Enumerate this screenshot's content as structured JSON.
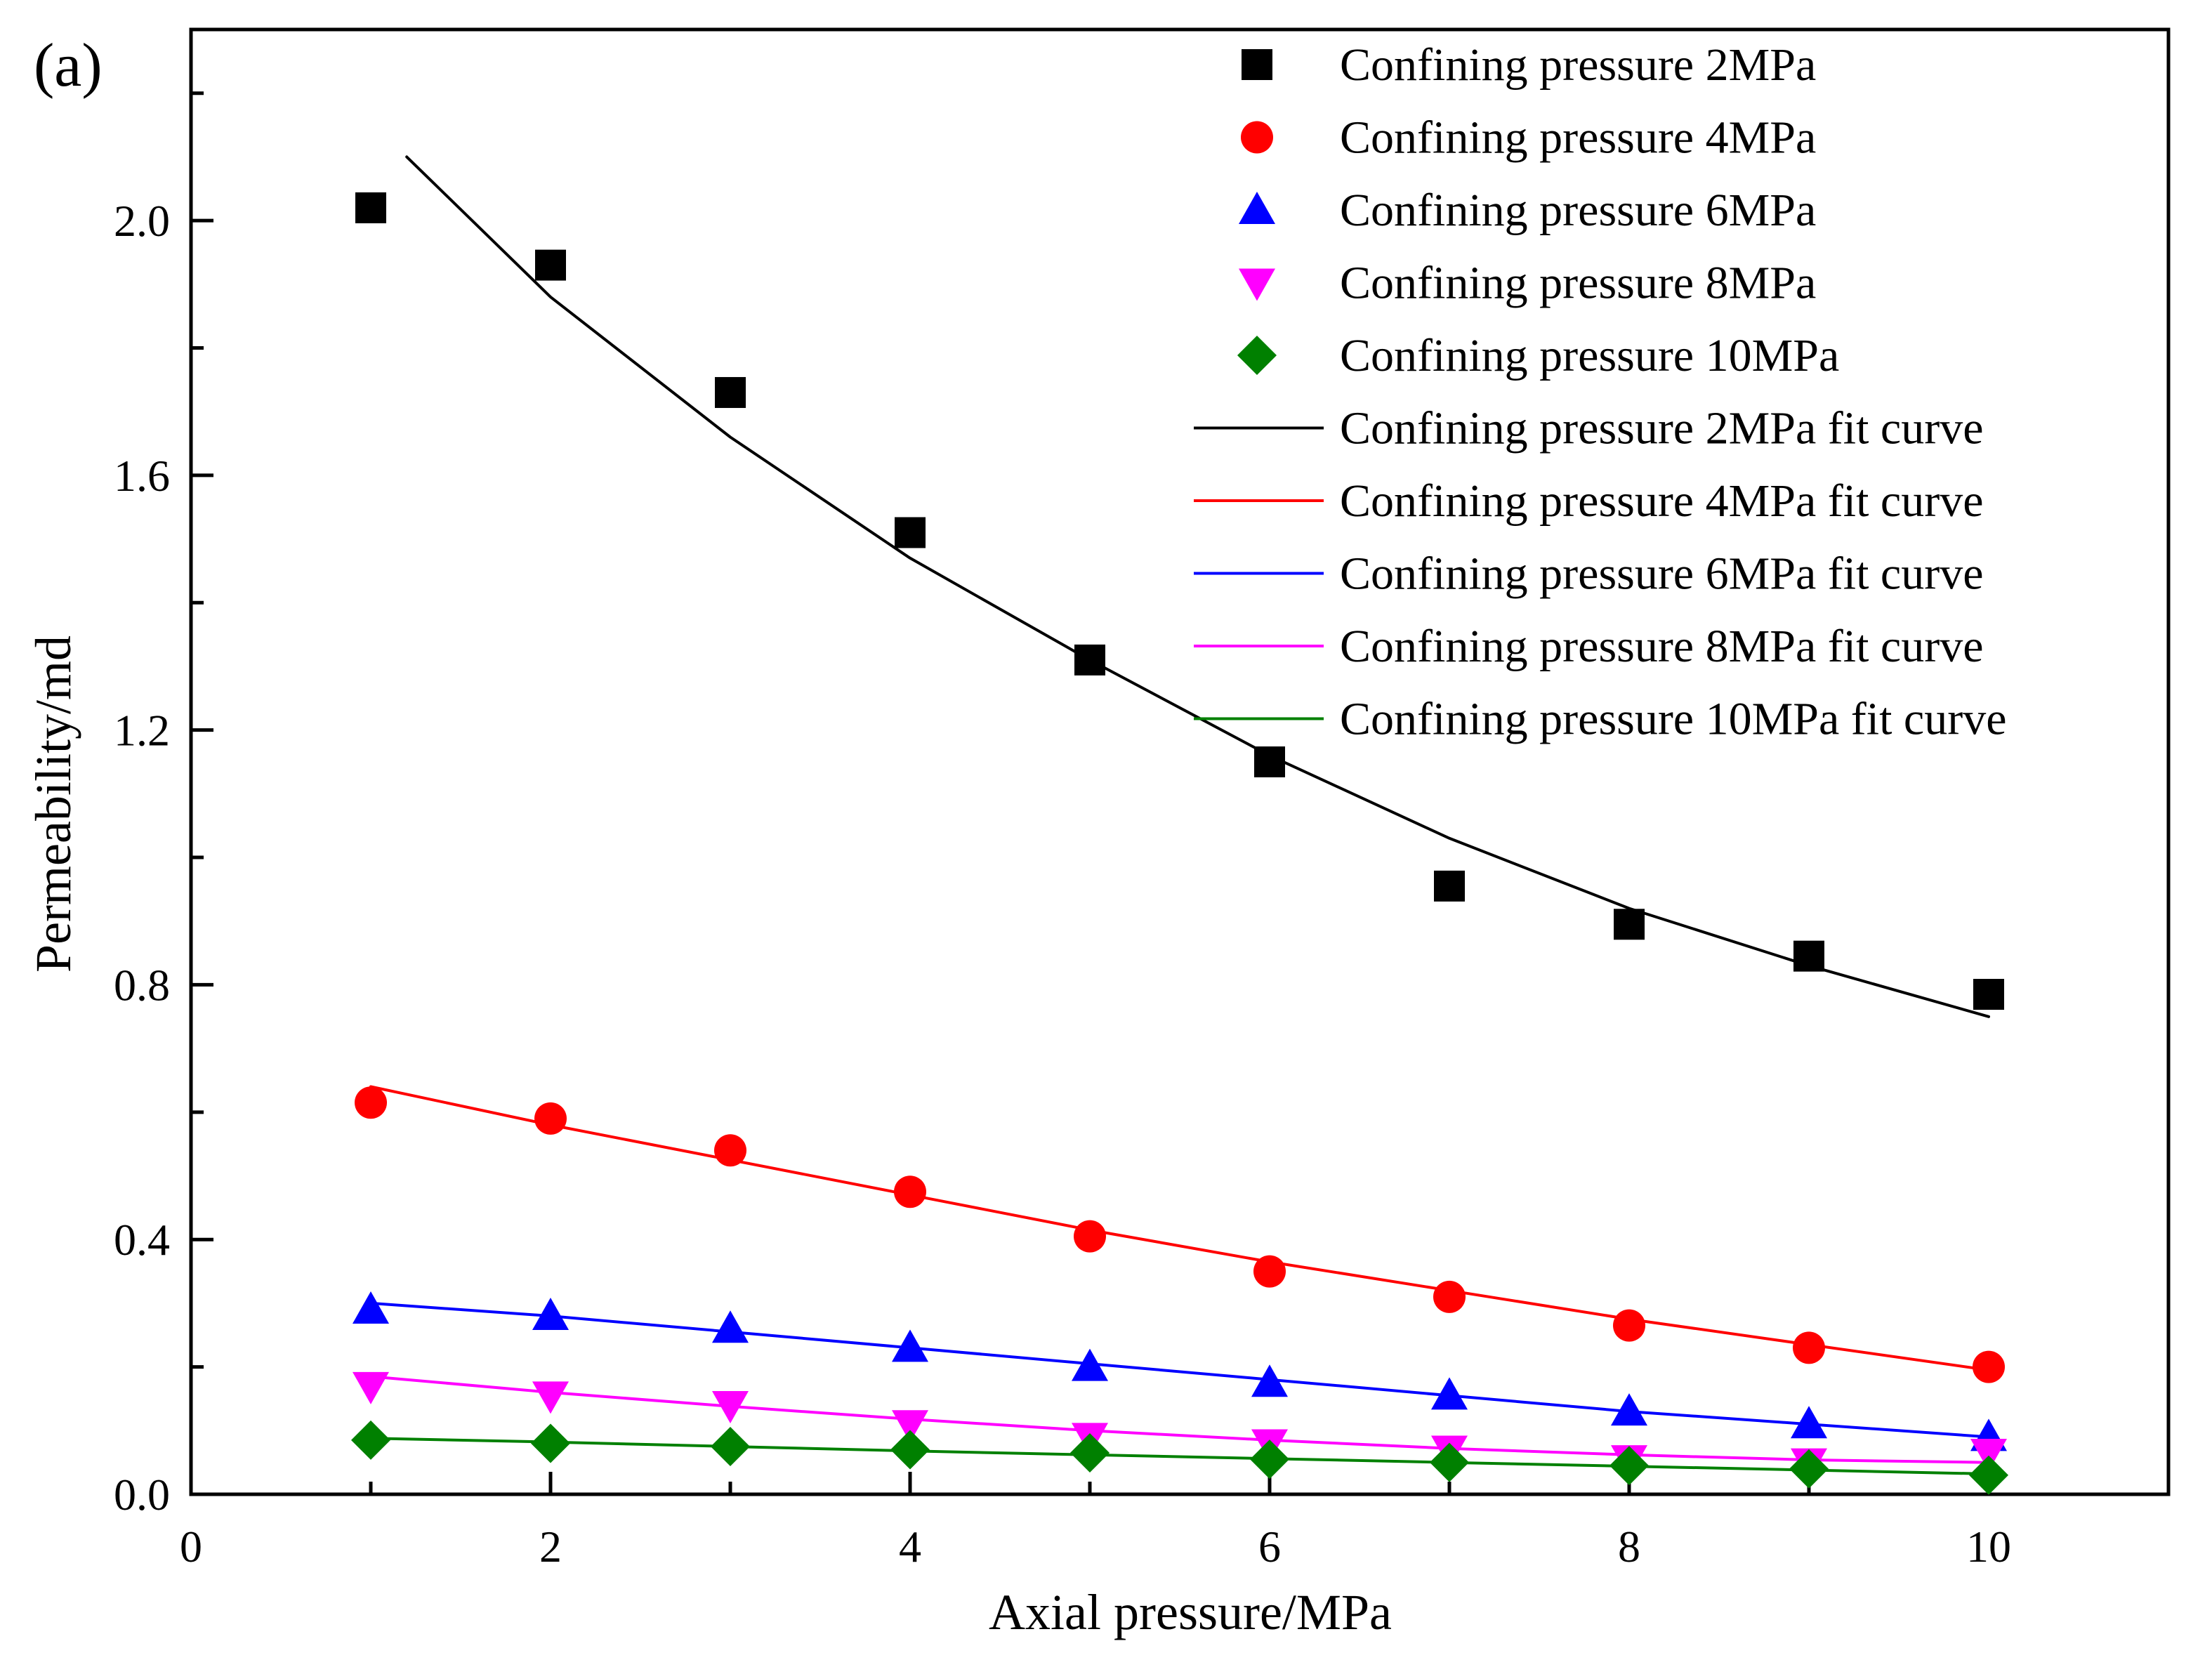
{
  "chart_data": {
    "type": "scatter",
    "panel_label": "(a)",
    "xlabel": "Axial pressure/MPa",
    "ylabel": "Permeability/md",
    "xlim": [
      0,
      11
    ],
    "ylim": [
      0,
      2.3
    ],
    "x_ticks": [
      0,
      2,
      4,
      6,
      8,
      10
    ],
    "x_tick_labels": [
      "0",
      "2",
      "4",
      "6",
      "8",
      "10"
    ],
    "y_ticks": [
      0,
      0.4,
      0.8,
      1.2,
      1.6,
      2.0
    ],
    "y_tick_labels": [
      "0.0",
      "0.4",
      "0.8",
      "1.2",
      "1.6",
      "2.0"
    ],
    "grid": false,
    "legend_position": "top-right",
    "x": [
      1,
      2,
      3,
      4,
      5,
      6,
      7,
      8,
      9,
      10
    ],
    "series": [
      {
        "name": "Confining pressure 2MPa",
        "marker": "square",
        "color": "#000000",
        "values": [
          2.02,
          1.93,
          1.73,
          1.51,
          1.31,
          1.15,
          0.955,
          0.895,
          0.845,
          0.785
        ]
      },
      {
        "name": "Confining pressure 4MPa",
        "marker": "circle",
        "color": "#ff0000",
        "values": [
          0.615,
          0.59,
          0.54,
          0.475,
          0.405,
          0.35,
          0.31,
          0.265,
          0.23,
          0.2
        ]
      },
      {
        "name": "Confining pressure 6MPa",
        "marker": "triangle-up",
        "color": "#0000ff",
        "values": [
          0.29,
          0.28,
          0.26,
          0.23,
          0.2,
          0.175,
          0.155,
          0.13,
          0.11,
          0.09
        ]
      },
      {
        "name": "Confining pressure 8MPa",
        "marker": "triangle-down",
        "color": "#ff00ff",
        "values": [
          0.17,
          0.155,
          0.14,
          0.11,
          0.09,
          0.08,
          0.07,
          0.055,
          0.05,
          0.065
        ]
      },
      {
        "name": "Confining pressure 10MPa",
        "marker": "diamond",
        "color": "#008000",
        "values": [
          0.085,
          0.08,
          0.075,
          0.07,
          0.065,
          0.055,
          0.05,
          0.045,
          0.04,
          0.03
        ]
      }
    ],
    "fit_curves": [
      {
        "name": "Confining pressure 2MPa fit curve",
        "color": "#000000",
        "x": [
          1.2,
          2,
          3,
          4,
          5,
          6,
          7,
          8,
          9,
          10
        ],
        "values": [
          2.1,
          1.88,
          1.66,
          1.47,
          1.31,
          1.16,
          1.03,
          0.92,
          0.83,
          0.75
        ]
      },
      {
        "name": "Confining pressure 4MPa fit curve",
        "color": "#ff0000",
        "x": [
          1,
          2,
          3,
          4,
          5,
          6,
          7,
          8,
          9,
          10
        ],
        "values": [
          0.64,
          0.58,
          0.525,
          0.47,
          0.415,
          0.365,
          0.32,
          0.275,
          0.235,
          0.195
        ]
      },
      {
        "name": "Confining pressure 6MPa fit curve",
        "color": "#0000ff",
        "x": [
          1,
          2,
          3,
          4,
          5,
          6,
          7,
          8,
          9,
          10
        ],
        "values": [
          0.3,
          0.28,
          0.255,
          0.23,
          0.205,
          0.18,
          0.155,
          0.13,
          0.11,
          0.09
        ]
      },
      {
        "name": "Confining pressure 8MPa fit curve",
        "color": "#ff00ff",
        "x": [
          1,
          2,
          3,
          4,
          5,
          6,
          7,
          8,
          9,
          10
        ],
        "values": [
          0.185,
          0.16,
          0.138,
          0.118,
          0.1,
          0.085,
          0.072,
          0.062,
          0.054,
          0.05
        ]
      },
      {
        "name": "Confining pressure 10MPa fit curve",
        "color": "#008000",
        "x": [
          1,
          2,
          3,
          4,
          5,
          6,
          7,
          8,
          9,
          10
        ],
        "values": [
          0.088,
          0.082,
          0.075,
          0.068,
          0.062,
          0.056,
          0.05,
          0.044,
          0.038,
          0.032
        ]
      }
    ]
  }
}
